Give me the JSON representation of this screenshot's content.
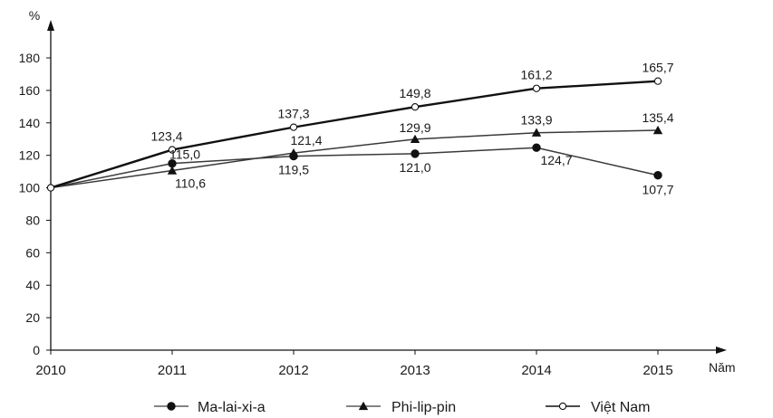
{
  "chart_data": {
    "type": "line",
    "title": "",
    "xlabel": "Năm",
    "ylabel": "%",
    "x": [
      "2010",
      "2011",
      "2012",
      "2013",
      "2014",
      "2015"
    ],
    "ylim": [
      0,
      180
    ],
    "yticks": [
      "0",
      "20",
      "40",
      "60",
      "80",
      "100",
      "120",
      "140",
      "160",
      "180"
    ],
    "grid": false,
    "legend_position": "bottom",
    "series": [
      {
        "name": "Ma-lai-xi-a",
        "marker": "filled-circle",
        "line_color": "#3a3a3a",
        "values": [
          100,
          115.0,
          119.5,
          121.0,
          124.7,
          107.7
        ],
        "labels": [
          "",
          "115,0",
          "119,5",
          "121,0",
          "124,7",
          "107,7"
        ]
      },
      {
        "name": "Phi-lip-pin",
        "marker": "filled-triangle",
        "line_color": "#3a3a3a",
        "values": [
          100,
          110.6,
          121.4,
          129.9,
          133.9,
          135.4
        ],
        "labels": [
          "",
          "110,6",
          "121,4",
          "129,9",
          "133,9",
          "135,4"
        ]
      },
      {
        "name": "Việt Nam",
        "marker": "open-diamond",
        "line_color": "#111111",
        "values": [
          100,
          123.4,
          137.3,
          149.8,
          161.2,
          165.7
        ],
        "labels": [
          "",
          "123,4",
          "137,3",
          "149,8",
          "161,2",
          "165,7"
        ]
      }
    ]
  }
}
